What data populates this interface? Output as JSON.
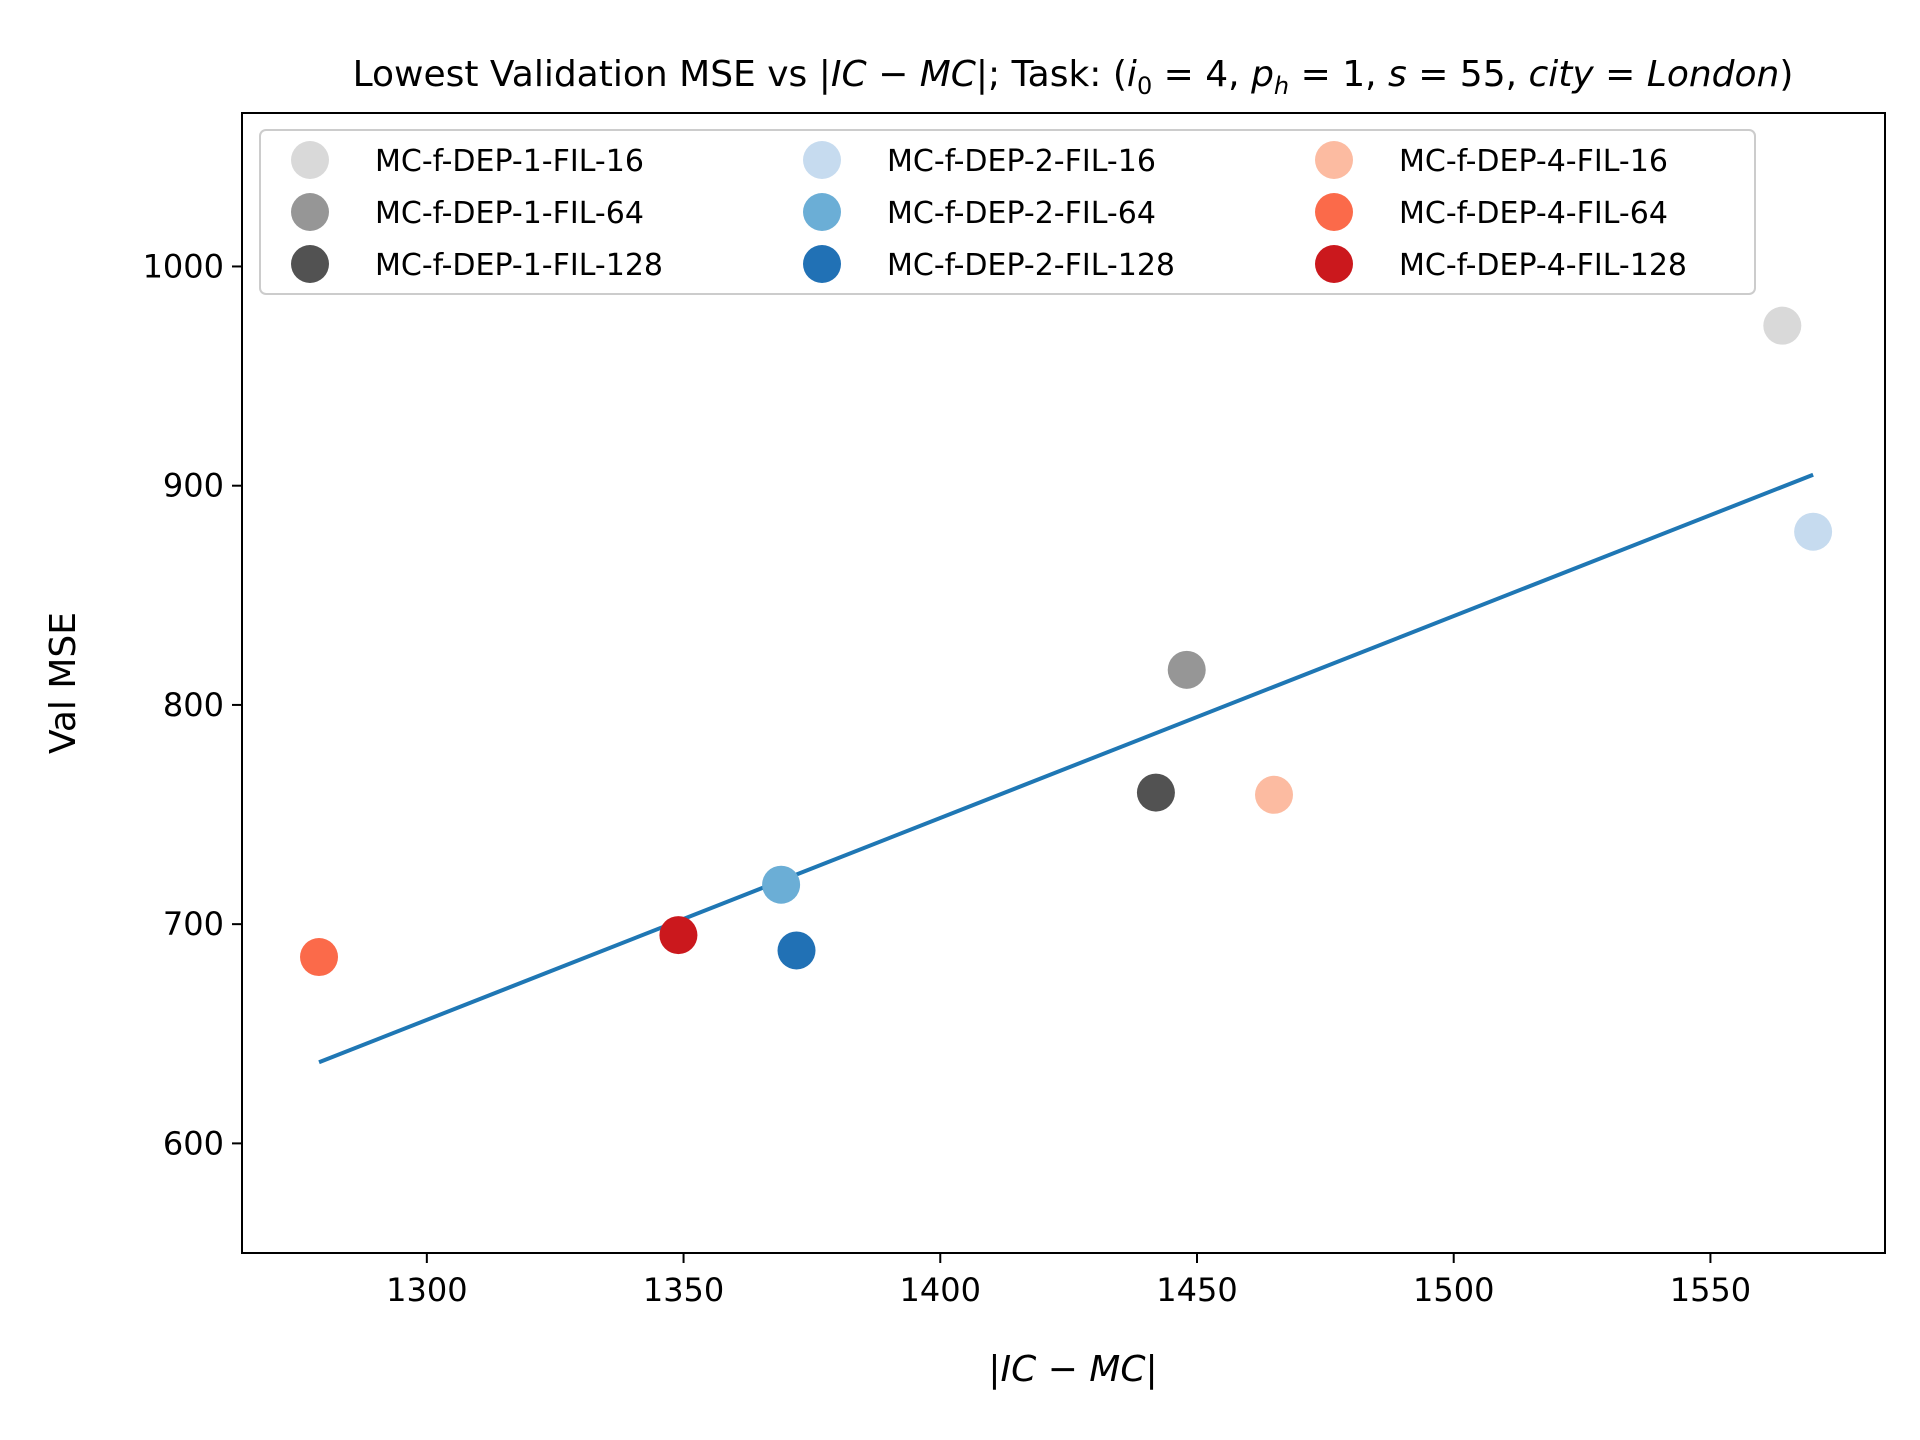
{
  "chart_data": {
    "type": "scatter",
    "title": {
      "prefix": "Lowest Validation MSE vs |",
      "ic_mc": "IC − MC",
      "middle": "|; Task: (",
      "i": "i",
      "i_sub": "0",
      "i_val": " = 4, ",
      "p": "p",
      "p_sub": "h",
      "p_val": " = 1, ",
      "s": "s",
      "s_val": " = 55, ",
      "city": "city",
      "city_eq": " = ",
      "london": "London",
      "suffix": ")"
    },
    "xlabel": {
      "bar_left": "|",
      "text": "IC − MC",
      "bar_right": "|"
    },
    "ylabel": "Val MSE",
    "xlim": [
      1264,
      1584
    ],
    "ylim": [
      550,
      1070
    ],
    "xticks": [
      1300,
      1350,
      1400,
      1450,
      1500,
      1550
    ],
    "yticks": [
      600,
      700,
      800,
      900,
      1000
    ],
    "grid": false,
    "legend_position": "top",
    "series": [
      {
        "name": "MC-f-DEP-1-FIL-16",
        "color": "#d9d9d9",
        "points": [
          [
            1564,
            973
          ]
        ]
      },
      {
        "name": "MC-f-DEP-1-FIL-64",
        "color": "#969696",
        "points": [
          [
            1448,
            816
          ]
        ]
      },
      {
        "name": "MC-f-DEP-1-FIL-128",
        "color": "#525252",
        "points": [
          [
            1442,
            760
          ]
        ]
      },
      {
        "name": "MC-f-DEP-2-FIL-16",
        "color": "#c6dbef",
        "points": [
          [
            1570,
            879
          ]
        ]
      },
      {
        "name": "MC-f-DEP-2-FIL-64",
        "color": "#6baed6",
        "points": [
          [
            1369,
            718
          ]
        ]
      },
      {
        "name": "MC-f-DEP-2-FIL-128",
        "color": "#2171b5",
        "points": [
          [
            1372,
            688
          ]
        ]
      },
      {
        "name": "MC-f-DEP-4-FIL-16",
        "color": "#fcbba1",
        "points": [
          [
            1465,
            759
          ]
        ]
      },
      {
        "name": "MC-f-DEP-4-FIL-64",
        "color": "#fb6a4a",
        "points": [
          [
            1279,
            685
          ]
        ]
      },
      {
        "name": "MC-f-DEP-4-FIL-128",
        "color": "#cb181d",
        "points": [
          [
            1349,
            695
          ]
        ]
      }
    ],
    "fit_line": {
      "color": "#1f77b4",
      "points": [
        [
          1279,
          637
        ],
        [
          1570,
          905
        ]
      ]
    }
  }
}
